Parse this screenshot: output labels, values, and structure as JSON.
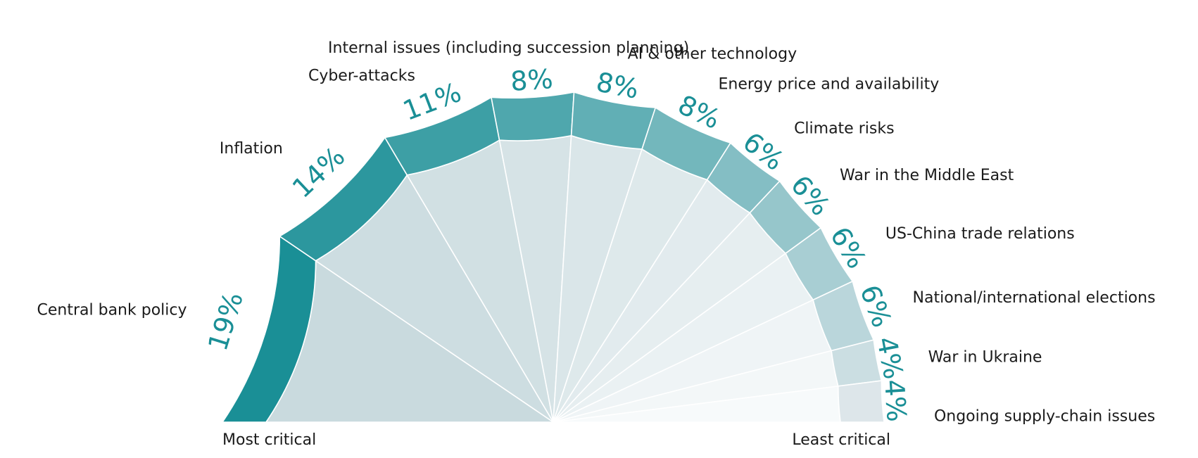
{
  "chart_data": {
    "type": "pie",
    "variant": "semicircle",
    "title": "",
    "categories": [
      "Central bank policy",
      "Inflation",
      "Cyber-attacks",
      "Internal issues (including succession planning)",
      "AI & other technology",
      "Energy price and availability",
      "Climate risks",
      "War in the Middle East",
      "US-China trade relations",
      "National/international elections",
      "War in Ukraine",
      "Ongoing supply-chain issues"
    ],
    "values": [
      19,
      14,
      11,
      8,
      8,
      8,
      6,
      6,
      6,
      6,
      4,
      4
    ],
    "value_labels": [
      "19%",
      "14%",
      "11%",
      "8%",
      "8%",
      "8%",
      "6%",
      "6%",
      "6%",
      "6%",
      "4%",
      "4%"
    ],
    "axis_start_label": "Most critical",
    "axis_end_label": "Least critical"
  },
  "colors": {
    "ring_start": "#1a8f96",
    "ring_end": "#dde6ea",
    "fill_start": "#c9dade",
    "fill_end": "#f7fafb",
    "value_text": "#1a8f96",
    "separator": "#ffffff"
  }
}
